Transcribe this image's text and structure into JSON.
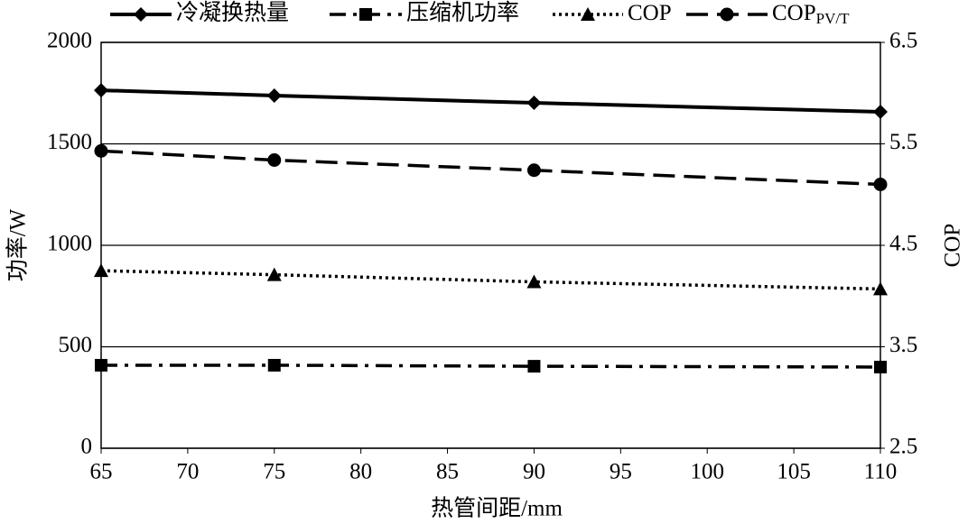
{
  "chart_data": {
    "type": "line",
    "x": [
      65,
      75,
      90,
      110
    ],
    "xlim": [
      65,
      110
    ],
    "xticks": [
      65,
      70,
      75,
      80,
      85,
      90,
      95,
      100,
      105,
      110
    ],
    "ylim": [
      0,
      2000
    ],
    "yticks": [
      0,
      500,
      1000,
      1500,
      2000
    ],
    "y2lim": [
      2.5,
      6.5
    ],
    "y2ticks": [
      2.5,
      3.5,
      4.5,
      5.5,
      6.5
    ],
    "xlabel": "热管间距/mm",
    "ylabel": "功率/W",
    "y2label": "COP",
    "grid": true,
    "series": [
      {
        "name": "冷凝换热量",
        "color": "#000000",
        "marker": "diamond",
        "dash": "solid",
        "values": [
          1764,
          1738,
          1702,
          1658
        ]
      },
      {
        "name": "压缩机功率",
        "color": "#000000",
        "marker": "square",
        "dash": "dash-dot",
        "values": [
          409,
          409,
          404,
          400
        ]
      },
      {
        "name": "COP",
        "color": "#000000",
        "marker": "triangle",
        "dash": "dotted",
        "axis": "y2",
        "values": [
          4.25,
          4.21,
          4.14,
          4.07
        ]
      },
      {
        "name": "COP",
        "subscript": "PV/T",
        "color": "#000000",
        "marker": "circle",
        "dash": "dashed",
        "axis": "y2",
        "values": [
          5.43,
          5.34,
          5.24,
          5.1
        ]
      }
    ]
  }
}
